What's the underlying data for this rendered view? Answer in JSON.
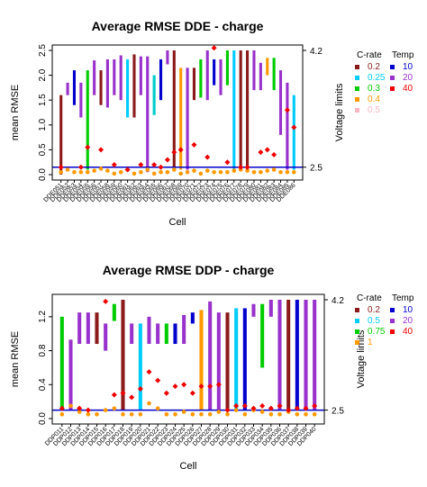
{
  "chart_data": [
    {
      "type": "bar",
      "title": "Average RMSE DDE - charge",
      "xlabel": "Cell",
      "ylabel": "mean RMSE",
      "y2label": "Voltage limits",
      "ylim": [
        0,
        2.5
      ],
      "yticks": [
        "0.0",
        "0.5",
        "1.0",
        "1.5",
        "2.0",
        "2.5"
      ],
      "y2ticks": [
        "2.5",
        "4.2"
      ],
      "y2tick_values": [
        0.15,
        2.5
      ],
      "baseline_color": "#0000cc",
      "categories": [
        "DDE051",
        "DDE052",
        "DDE053",
        "DDE054",
        "DDE055",
        "DDE056",
        "DDE057",
        "DDE058",
        "DDE059",
        "DDE060",
        "DDE061",
        "DDE062",
        "DDE063",
        "DDE064",
        "DDE065",
        "DDE066",
        "DDE067",
        "DDE068",
        "DDE069",
        "DDE070",
        "DDE071",
        "DDE072",
        "DDE073",
        "DDE074",
        "DDE075",
        "DDE076",
        "DDE077",
        "DDE078",
        "DDE079",
        "DDE080",
        "DDE081",
        "DDE082",
        "DDE083",
        "DDE084",
        "DDE085",
        "DDE086"
      ],
      "bars": [
        {
          "low": 0,
          "high": 1.6,
          "color": "#8b1a1a"
        },
        {
          "low": 1.6,
          "high": 1.85,
          "color": "#9932cc"
        },
        {
          "low": 1.4,
          "high": 2.1,
          "color": "#0000cd"
        },
        {
          "low": 1.15,
          "high": 1.85,
          "color": "#9932cc"
        },
        {
          "low": 0.1,
          "high": 2.1,
          "color": "#00cc00"
        },
        {
          "low": 1.6,
          "high": 2.3,
          "color": "#9932cc"
        },
        {
          "low": 1.4,
          "high": 2.1,
          "color": "#8b1a1a"
        },
        {
          "low": 1.35,
          "high": 2.32,
          "color": "#9932cc"
        },
        {
          "low": 1.6,
          "high": 2.32,
          "color": "#9932cc"
        },
        {
          "low": 1.5,
          "high": 2.4,
          "color": "#9932cc"
        },
        {
          "low": 1.15,
          "high": 2.32,
          "color": "#00ccff"
        },
        {
          "low": 1.15,
          "high": 2.42,
          "color": "#8b1a1a"
        },
        {
          "low": 1.6,
          "high": 2.38,
          "color": "#9932cc"
        },
        {
          "low": 0.05,
          "high": 2.38,
          "color": "#9932cc"
        },
        {
          "low": 1.2,
          "high": 2.0,
          "color": "#00cccc"
        },
        {
          "low": 1.5,
          "high": 2.32,
          "color": "#0000cd"
        },
        {
          "low": 2.22,
          "high": 2.5,
          "color": "#9932cc"
        },
        {
          "low": 0.1,
          "high": 2.5,
          "color": "#8b1a1a"
        },
        {
          "low": 0.1,
          "high": 2.15,
          "color": "#ff9900"
        },
        {
          "low": 0.1,
          "high": 2.15,
          "color": "#9932cc"
        },
        {
          "low": 1.5,
          "high": 2.15,
          "color": "#8b1a1a"
        },
        {
          "low": 1.55,
          "high": 2.32,
          "color": "#00cc00"
        },
        {
          "low": 1.5,
          "high": 2.5,
          "color": "#9932cc"
        },
        {
          "low": 1.8,
          "high": 2.32,
          "color": "#0000cd"
        },
        {
          "low": 1.6,
          "high": 2.32,
          "color": "#9932cc"
        },
        {
          "low": 1.8,
          "high": 2.5,
          "color": "#00cc00"
        },
        {
          "low": 0.1,
          "high": 2.5,
          "color": "#00ccff"
        },
        {
          "low": 0.1,
          "high": 2.5,
          "color": "#8b1a1a"
        },
        {
          "low": 0.1,
          "high": 2.5,
          "color": "#8b1a1a"
        },
        {
          "low": 1.7,
          "high": 2.5,
          "color": "#9932cc"
        },
        {
          "low": 1.7,
          "high": 2.25,
          "color": "#9932cc"
        },
        {
          "low": 2.0,
          "high": 2.35,
          "color": "#ff9900"
        },
        {
          "low": 1.7,
          "high": 2.35,
          "color": "#00cc00"
        },
        {
          "low": 0.8,
          "high": 2.1,
          "color": "#9932cc"
        },
        {
          "low": 0.1,
          "high": 1.85,
          "color": "#9932cc"
        },
        {
          "low": 0.1,
          "high": 1.6,
          "color": "#00ccff"
        }
      ],
      "red_diamonds": [
        0.15,
        null,
        null,
        0.15,
        0.55,
        null,
        0.5,
        null,
        0.2,
        null,
        0.1,
        null,
        0.2,
        null,
        0.2,
        0.15,
        0.3,
        0.45,
        0.5,
        null,
        0.6,
        null,
        0.35,
        2.55,
        null,
        0.25,
        null,
        0.15,
        0.15,
        null,
        0.45,
        0.5,
        0.4,
        null,
        1.3,
        0.95
      ],
      "orange_points": [
        0.05,
        0.1,
        0.05,
        0.05,
        0.05,
        0.08,
        0.12,
        0.08,
        0.02,
        0.05,
        0.1,
        0.02,
        0.05,
        0.1,
        0.02,
        0.05,
        0.05,
        0.1,
        0.02,
        0.05,
        0.08,
        0.02,
        0.08,
        0.05,
        0.05,
        0.05,
        0.08,
        0.1,
        0.08,
        0.05,
        0.05,
        0.08,
        0.1,
        0.05,
        0.05,
        0.05
      ],
      "legend": {
        "title_left": "C-rate",
        "title_right": "Temp",
        "crate": [
          {
            "label": "0.2",
            "color": "#8b1a1a"
          },
          {
            "label": "0.25",
            "color": "#00ccff"
          },
          {
            "label": "0.3",
            "color": "#00cc00"
          },
          {
            "label": "0.4",
            "color": "#ff9900"
          },
          {
            "label": "0.5",
            "color": "#ffb6c1"
          }
        ],
        "temp": [
          {
            "label": "10",
            "color": "#0000cd"
          },
          {
            "label": "20",
            "color": "#9932cc"
          },
          {
            "label": "40",
            "color": "#ee0000"
          }
        ]
      }
    },
    {
      "type": "bar",
      "title": "Average RMSE DDP - charge",
      "xlabel": "Cell",
      "ylabel": "mean RMSE",
      "y2label": "Voltage limits",
      "ylim": [
        0,
        1.4
      ],
      "yticks": [
        "0.0",
        "0.4",
        "0.8",
        "1.2"
      ],
      "ytick_values": [
        0,
        0.4,
        0.8,
        1.2
      ],
      "y2ticks": [
        "2.5",
        "4.2"
      ],
      "y2tick_values": [
        0.1,
        1.4
      ],
      "baseline_color": "#0000cc",
      "categories": [
        "DDP011",
        "DDP012",
        "DDP013",
        "DDP014",
        "DDP015",
        "DDP016",
        "DDP017",
        "DDP018",
        "DDP019",
        "DDP020",
        "DDP021",
        "DDP022",
        "DDP023",
        "DDP024",
        "DDP025",
        "DDP026",
        "DDP027",
        "DDP028",
        "DDP029",
        "DDP030",
        "DDP031",
        "DDP032",
        "DDP033",
        "DDP034",
        "DDP035",
        "DDP036",
        "DDP037",
        "DDP038",
        "DDP039",
        "DDP040"
      ],
      "bars": [
        {
          "low": 0.1,
          "high": 1.2,
          "color": "#00cc00"
        },
        {
          "low": 0.1,
          "high": 0.93,
          "color": "#9932cc"
        },
        {
          "low": 0.88,
          "high": 1.25,
          "color": "#9932cc"
        },
        {
          "low": 0.88,
          "high": 1.25,
          "color": "#9932cc"
        },
        {
          "low": 0.88,
          "high": 1.25,
          "color": "#8b1a1a"
        },
        {
          "low": 0.8,
          "high": 1.12,
          "color": "#9932cc"
        },
        {
          "low": 1.15,
          "high": 1.35,
          "color": "#00cc00"
        },
        {
          "low": 0.1,
          "high": 1.4,
          "color": "#8b1a1a"
        },
        {
          "low": 0.88,
          "high": 1.12,
          "color": "#9932cc"
        },
        {
          "low": 0.1,
          "high": 1.12,
          "color": "#00ccff"
        },
        {
          "low": 0.88,
          "high": 1.2,
          "color": "#9932cc"
        },
        {
          "low": 0.88,
          "high": 1.12,
          "color": "#9932cc"
        },
        {
          "low": 0.88,
          "high": 1.12,
          "color": "#00cc00"
        },
        {
          "low": 0.88,
          "high": 1.12,
          "color": "#0000cd"
        },
        {
          "low": 0.88,
          "high": 1.22,
          "color": "#9932cc"
        },
        {
          "low": 1.12,
          "high": 1.25,
          "color": "#0000cd"
        },
        {
          "low": 0.1,
          "high": 1.28,
          "color": "#ff9900"
        },
        {
          "low": 0.1,
          "high": 1.38,
          "color": "#9932cc"
        },
        {
          "low": 0.1,
          "high": 1.25,
          "color": "#9932cc"
        },
        {
          "low": 0.1,
          "high": 1.25,
          "color": "#8b1a1a"
        },
        {
          "low": 0.1,
          "high": 1.3,
          "color": "#00ccff"
        },
        {
          "low": 0.1,
          "high": 1.3,
          "color": "#0000cd"
        },
        {
          "low": 1.2,
          "high": 1.35,
          "color": "#9932cc"
        },
        {
          "low": 0.6,
          "high": 1.35,
          "color": "#00cc00"
        },
        {
          "low": 1.2,
          "high": 1.4,
          "color": "#9932cc"
        },
        {
          "low": 0.1,
          "high": 1.4,
          "color": "#9932cc"
        },
        {
          "low": 0.1,
          "high": 1.4,
          "color": "#8b1a1a"
        },
        {
          "low": 0.1,
          "high": 1.4,
          "color": "#0000cd"
        },
        {
          "low": 0.1,
          "high": 1.4,
          "color": "#9932cc"
        },
        {
          "low": 0.1,
          "high": 1.4,
          "color": "#9932cc"
        }
      ],
      "red_diamonds": [
        0.12,
        null,
        0.12,
        0.1,
        null,
        1.38,
        0.28,
        0.3,
        0.25,
        0.35,
        0.55,
        0.45,
        0.3,
        0.38,
        0.4,
        0.3,
        0.38,
        0.38,
        0.4,
        0.1,
        0.15,
        0.15,
        0.12,
        0.15,
        0.12,
        0.15,
        0.1,
        0.12,
        0.12,
        0.15
      ],
      "orange_points": [
        0.05,
        0.15,
        0.08,
        0.05,
        0.05,
        0.1,
        0.12,
        0.05,
        0.05,
        0.05,
        0.18,
        0.12,
        0.05,
        0.05,
        0.08,
        0.05,
        0.05,
        0.05,
        0.08,
        0.05,
        0.1,
        0.05,
        0.1,
        0.08,
        0.05,
        0.05,
        0.08,
        0.05,
        0.05,
        0.05
      ],
      "legend": {
        "title_left": "C-rate",
        "title_right": "Temp",
        "crate": [
          {
            "label": "0.2",
            "color": "#8b1a1a"
          },
          {
            "label": "0.5",
            "color": "#00ccff"
          },
          {
            "label": "0.75",
            "color": "#00cc00"
          },
          {
            "label": "1",
            "color": "#ff9900"
          }
        ],
        "temp": [
          {
            "label": "10",
            "color": "#0000cd"
          },
          {
            "label": "20",
            "color": "#9932cc"
          },
          {
            "label": "40",
            "color": "#ee0000"
          }
        ]
      }
    }
  ]
}
